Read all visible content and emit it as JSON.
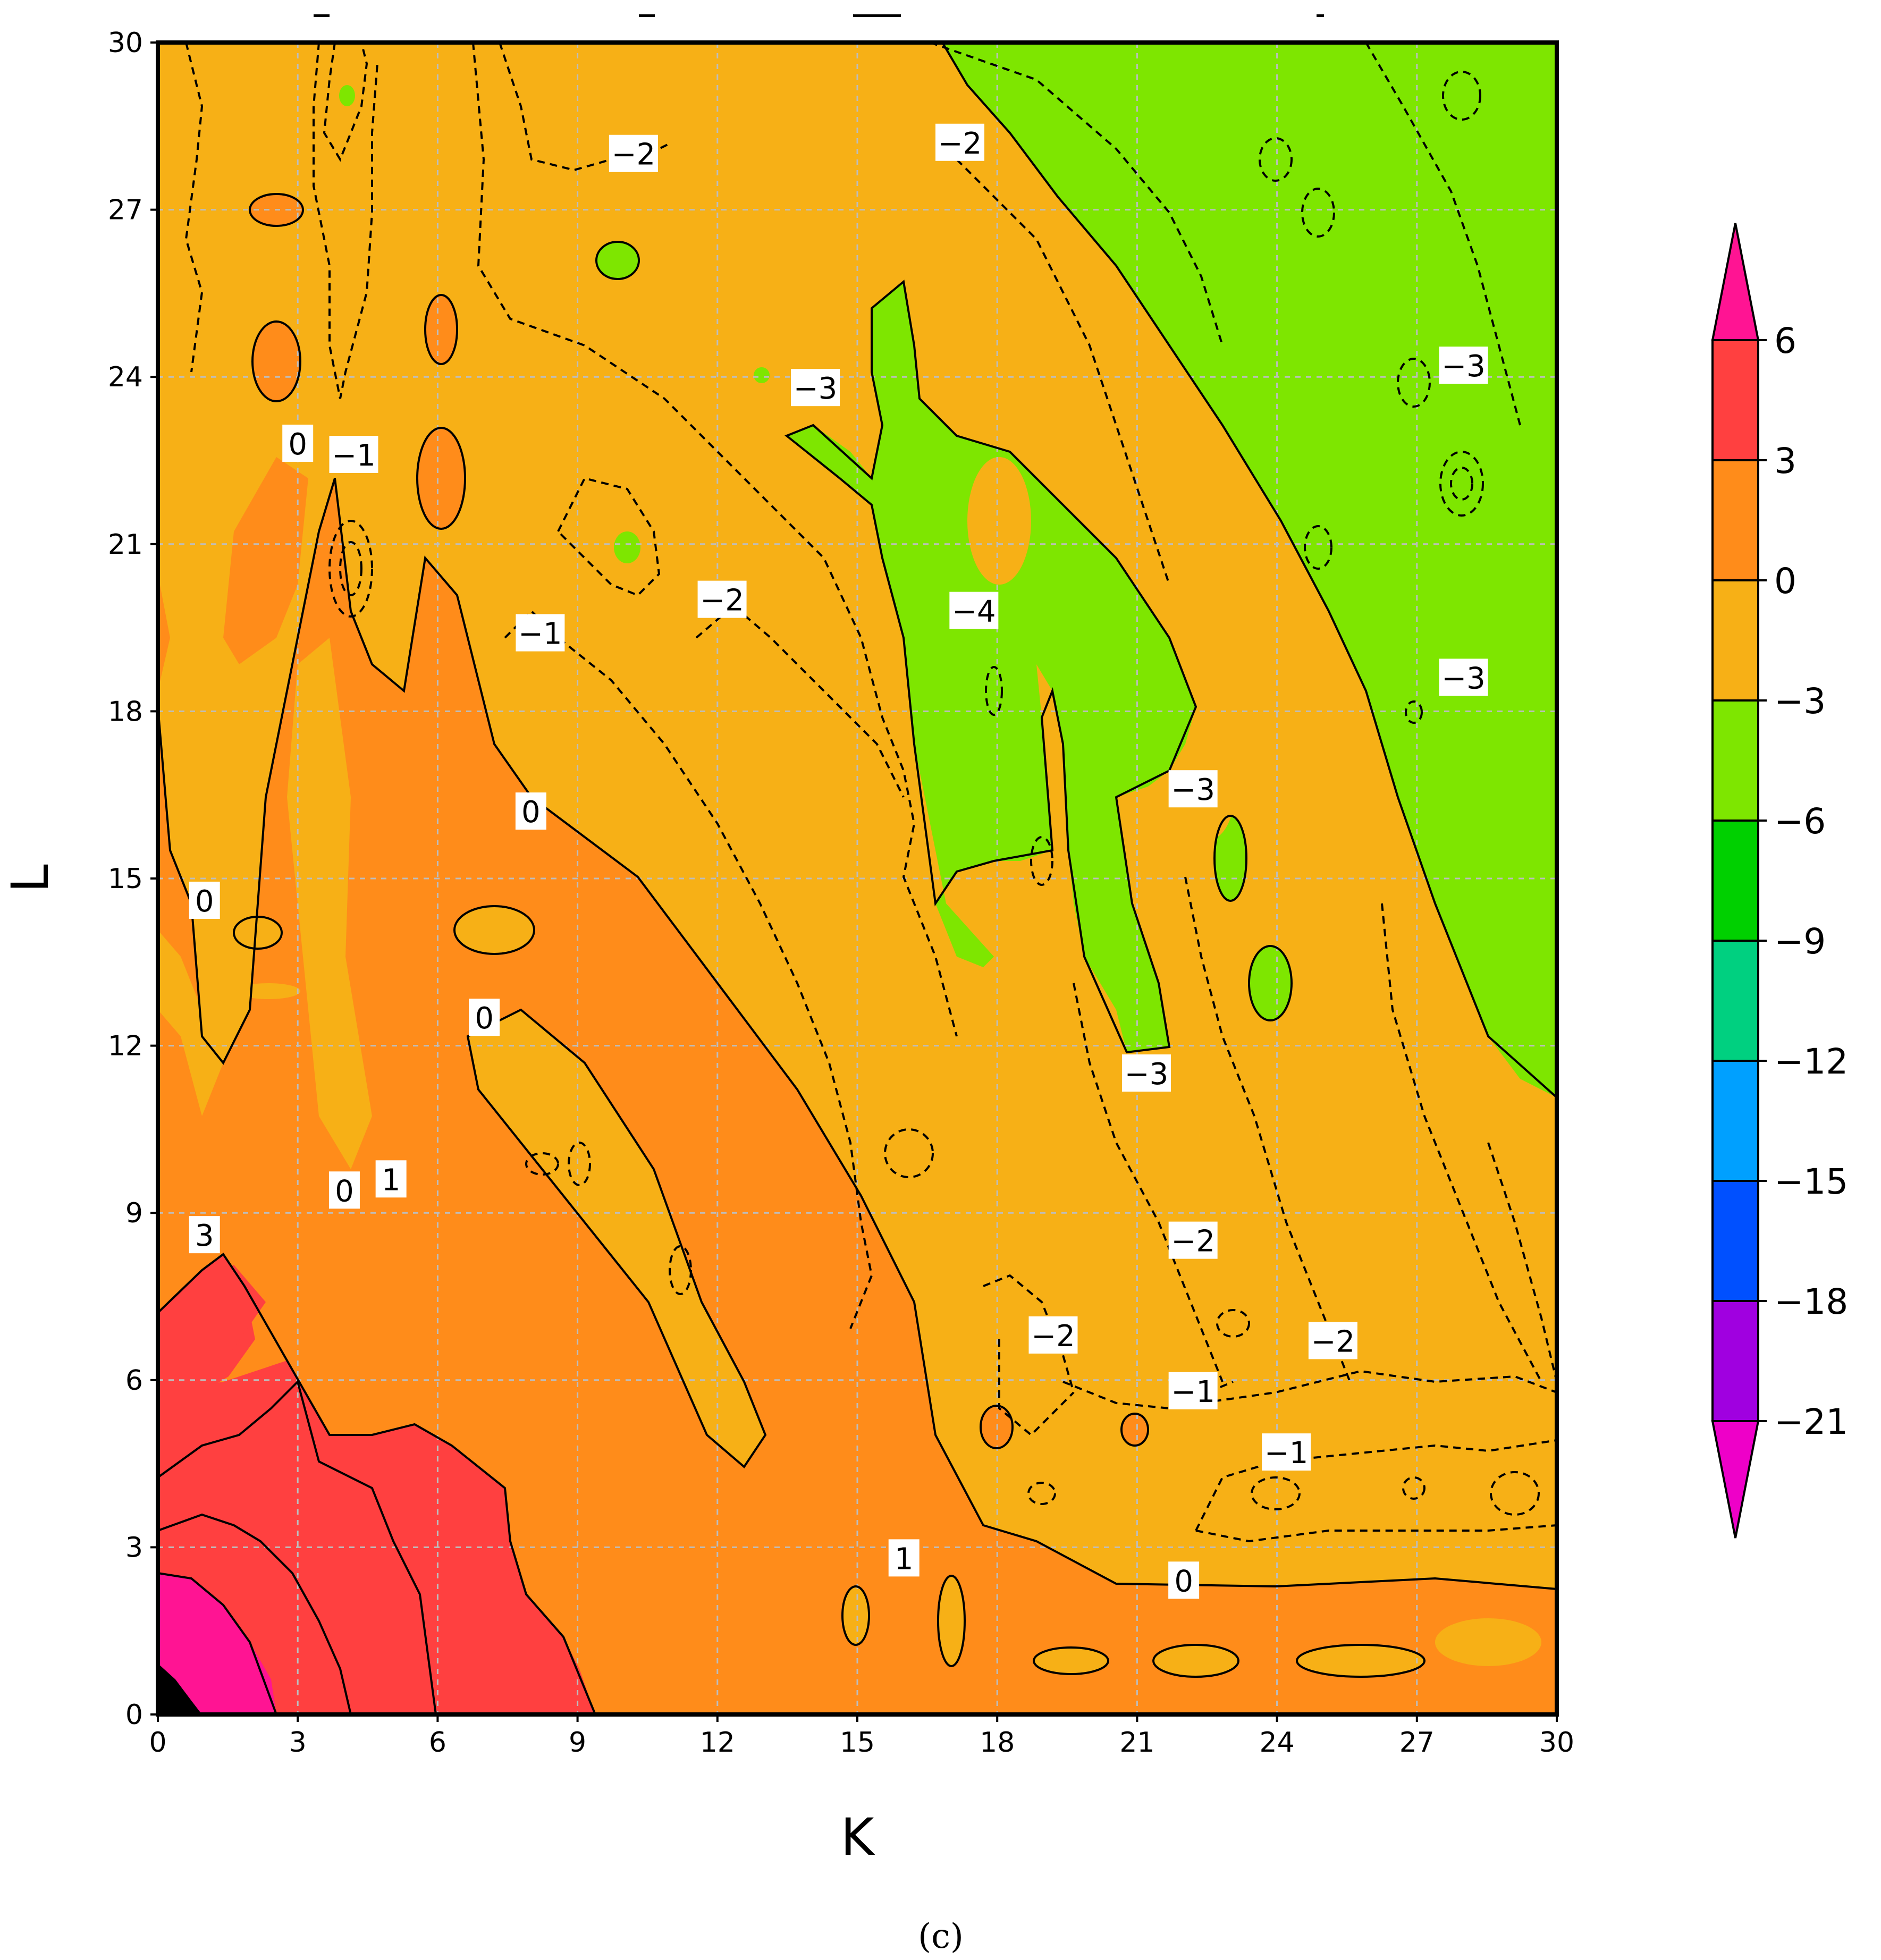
{
  "chart_data": {
    "type": "contour",
    "xlabel": "K",
    "ylabel": "L",
    "xlim": [
      0,
      30
    ],
    "ylim": [
      0,
      30
    ],
    "xticks": [
      0,
      3,
      6,
      9,
      12,
      15,
      18,
      21,
      24,
      27,
      30
    ],
    "yticks": [
      0,
      3,
      6,
      9,
      12,
      15,
      18,
      21,
      24,
      27,
      30
    ],
    "grid": true,
    "caption": "(c)",
    "colorbar": {
      "labels": [
        "6",
        "3",
        "0",
        "−3",
        "−6",
        "−9",
        "−12",
        "−15",
        "−18",
        "−21"
      ],
      "colors": [
        "#ff1493",
        "#ff4040",
        "#ff8c1a",
        "#f7b016",
        "#7ee600",
        "#00d000",
        "#00d080",
        "#00a0ff",
        "#0050ff",
        "#a000e0",
        "#ee00c8"
      ],
      "extend": "both"
    },
    "contour_labels": [
      {
        "text": "−2",
        "k": 10.2,
        "l": 28.0
      },
      {
        "text": "−2",
        "k": 17.2,
        "l": 28.2
      },
      {
        "text": "−3",
        "k": 14.1,
        "l": 23.8
      },
      {
        "text": "−3",
        "k": 28.0,
        "l": 24.2
      },
      {
        "text": "0",
        "k": 3.0,
        "l": 22.8
      },
      {
        "text": "−1",
        "k": 4.2,
        "l": 22.6
      },
      {
        "text": "−2",
        "k": 12.1,
        "l": 20.0
      },
      {
        "text": "−4",
        "k": 17.5,
        "l": 19.8
      },
      {
        "text": "−1",
        "k": 8.2,
        "l": 19.4
      },
      {
        "text": "−3",
        "k": 28.0,
        "l": 18.6
      },
      {
        "text": "−3",
        "k": 22.2,
        "l": 16.6
      },
      {
        "text": "0",
        "k": 8.0,
        "l": 16.2
      },
      {
        "text": "0",
        "k": 1.0,
        "l": 14.6
      },
      {
        "text": "0",
        "k": 7.0,
        "l": 12.5
      },
      {
        "text": "−3",
        "k": 21.2,
        "l": 11.5
      },
      {
        "text": "0",
        "k": 4.0,
        "l": 9.4
      },
      {
        "text": "1",
        "k": 5.0,
        "l": 9.6
      },
      {
        "text": "3",
        "k": 1.0,
        "l": 8.6
      },
      {
        "text": "−2",
        "k": 22.2,
        "l": 8.5
      },
      {
        "text": "−2",
        "k": 19.2,
        "l": 6.8
      },
      {
        "text": "−2",
        "k": 25.2,
        "l": 6.7
      },
      {
        "text": "−1",
        "k": 22.2,
        "l": 5.8
      },
      {
        "text": "−1",
        "k": 24.2,
        "l": 4.7
      },
      {
        "text": "1",
        "k": 16.0,
        "l": 2.8
      },
      {
        "text": "0",
        "k": 22.0,
        "l": 2.4
      }
    ],
    "regions": [
      {
        "level": "-3 to -6",
        "description": "green band upper right",
        "k": [
          17,
          30
        ],
        "l": [
          11,
          30
        ]
      },
      {
        "level": "0 to 3",
        "description": "orange diagonal band",
        "k": [
          0,
          18
        ],
        "l": [
          0,
          18
        ]
      },
      {
        "level": "3 to 6",
        "description": "red region lower left",
        "k": [
          0,
          9
        ],
        "l": [
          0,
          8
        ]
      },
      {
        "level": ">6",
        "description": "magenta corner",
        "k": [
          0,
          2
        ],
        "l": [
          0,
          2.5
        ]
      }
    ]
  }
}
